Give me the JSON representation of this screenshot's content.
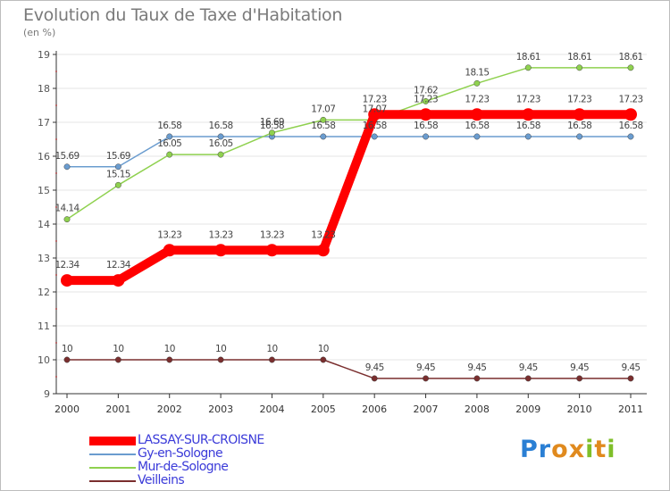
{
  "title": "Evolution du Taux de Taxe d'Habitation",
  "subtitle": "(en %)",
  "logo": {
    "text": "Proxiti",
    "letters": [
      "P",
      "r",
      "o",
      "x",
      "i",
      "t",
      "i"
    ],
    "colors": [
      "#2a7fd4",
      "#2a7fd4",
      "#e08a1e",
      "#e08a1e",
      "#7fbf2a",
      "#e08a1e",
      "#7fbf2a"
    ]
  },
  "chart_data": {
    "type": "line",
    "title": "Evolution du Taux de Taxe d'Habitation",
    "ylabel": "(en %)",
    "xlabel": "",
    "ylim": [
      9,
      19
    ],
    "yticks": [
      9,
      10,
      11,
      12,
      13,
      14,
      15,
      16,
      17,
      18,
      19
    ],
    "x": [
      "2000",
      "2001",
      "2002",
      "2003",
      "2004",
      "2005",
      "2006",
      "2007",
      "2008",
      "2009",
      "2010",
      "2011"
    ],
    "series": [
      {
        "name": "LASSAY-SUR-CROISNE",
        "color": "#ff0000",
        "width": "thick",
        "values": [
          12.34,
          12.34,
          13.23,
          13.23,
          13.23,
          13.23,
          17.23,
          17.23,
          17.23,
          17.23,
          17.23,
          17.23
        ],
        "labels": [
          "12.34",
          "12.34",
          "13.23",
          "13.23",
          "13.23",
          "13.23",
          "17.23",
          "17.23",
          "17.23",
          "17.23",
          "17.23",
          "17.23"
        ]
      },
      {
        "name": "Gy-en-Sologne",
        "color": "#6a9ccf",
        "width": "thin",
        "values": [
          15.69,
          15.69,
          16.58,
          16.58,
          16.58,
          16.58,
          16.58,
          16.58,
          16.58,
          16.58,
          16.58,
          16.58
        ],
        "labels": [
          "15.69",
          "15.69",
          "16.58",
          "16.58",
          "16.58",
          "16.58",
          "16.58",
          "16.58",
          "16.58",
          "16.58",
          "16.58",
          "16.58"
        ]
      },
      {
        "name": "Mur-de-Sologne",
        "color": "#8fd14f",
        "width": "thin",
        "values": [
          14.14,
          15.15,
          16.05,
          16.05,
          16.69,
          17.07,
          17.07,
          17.62,
          18.15,
          18.61,
          18.61,
          18.61
        ],
        "labels": [
          "14.14",
          "15.15",
          "16.05",
          "16.05",
          "16.69",
          "17.07",
          "17.07",
          "17.62",
          "18.15",
          "18.61",
          "18.61",
          "18.61"
        ]
      },
      {
        "name": "Veilleins",
        "color": "#7a2e2e",
        "width": "thin",
        "values": [
          10,
          10,
          10,
          10,
          10,
          10,
          9.45,
          9.45,
          9.45,
          9.45,
          9.45,
          9.45
        ],
        "labels": [
          "10",
          "10",
          "10",
          "10",
          "10",
          "10",
          "9.45",
          "9.45",
          "9.45",
          "9.45",
          "9.45",
          "9.45"
        ]
      }
    ],
    "legend_position": "bottom-left"
  }
}
